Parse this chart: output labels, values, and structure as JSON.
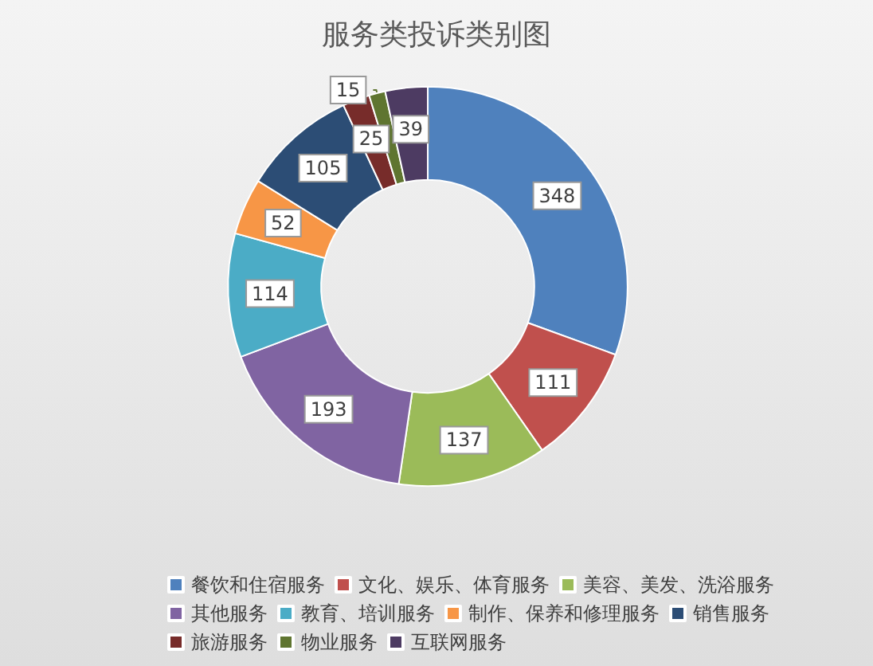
{
  "chart_data": {
    "type": "donut",
    "title": "服务类投诉类别图",
    "categories": [
      "餐饮和住宿服务",
      "文化、娱乐、体育服务",
      "美容、美发、洗浴服务",
      "其他服务",
      "教育、培训服务",
      "制作、保养和修理服务",
      "销售服务",
      "旅游服务",
      "物业服务",
      "互联网服务"
    ],
    "values": [
      348,
      111,
      137,
      193,
      114,
      52,
      105,
      25,
      15,
      39
    ],
    "colors": [
      "#4f81bd",
      "#c0504d",
      "#9bbb59",
      "#8064a2",
      "#4bacc6",
      "#f79646",
      "#2c4d75",
      "#772c2a",
      "#5f7530",
      "#4d3b62"
    ],
    "data_labels": true,
    "legend": "bottom"
  }
}
